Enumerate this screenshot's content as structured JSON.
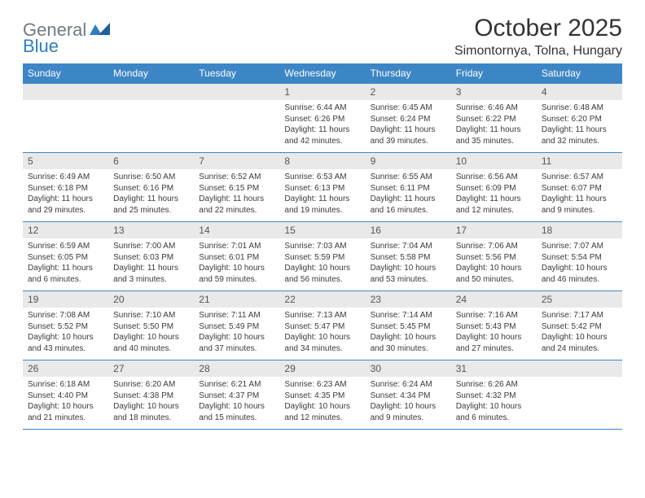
{
  "brand": {
    "name1": "General",
    "name2": "Blue"
  },
  "title": "October 2025",
  "location": "Simontornya, Tolna, Hungary",
  "colors": {
    "header_bg": "#3d86c6",
    "header_text": "#ffffff",
    "grid_border": "#3d86c6",
    "daynum_bg": "#e9e9e9",
    "body_text": "#3a3a3a",
    "logo_gray": "#6f7b83",
    "logo_blue": "#2f7fbf"
  },
  "days_of_week": [
    "Sunday",
    "Monday",
    "Tuesday",
    "Wednesday",
    "Thursday",
    "Friday",
    "Saturday"
  ],
  "weeks": [
    [
      {
        "empty": true
      },
      {
        "empty": true
      },
      {
        "empty": true
      },
      {
        "num": "1",
        "sunrise": "6:44 AM",
        "sunset": "6:26 PM",
        "daylight": "11 hours and 42 minutes."
      },
      {
        "num": "2",
        "sunrise": "6:45 AM",
        "sunset": "6:24 PM",
        "daylight": "11 hours and 39 minutes."
      },
      {
        "num": "3",
        "sunrise": "6:46 AM",
        "sunset": "6:22 PM",
        "daylight": "11 hours and 35 minutes."
      },
      {
        "num": "4",
        "sunrise": "6:48 AM",
        "sunset": "6:20 PM",
        "daylight": "11 hours and 32 minutes."
      }
    ],
    [
      {
        "num": "5",
        "sunrise": "6:49 AM",
        "sunset": "6:18 PM",
        "daylight": "11 hours and 29 minutes."
      },
      {
        "num": "6",
        "sunrise": "6:50 AM",
        "sunset": "6:16 PM",
        "daylight": "11 hours and 25 minutes."
      },
      {
        "num": "7",
        "sunrise": "6:52 AM",
        "sunset": "6:15 PM",
        "daylight": "11 hours and 22 minutes."
      },
      {
        "num": "8",
        "sunrise": "6:53 AM",
        "sunset": "6:13 PM",
        "daylight": "11 hours and 19 minutes."
      },
      {
        "num": "9",
        "sunrise": "6:55 AM",
        "sunset": "6:11 PM",
        "daylight": "11 hours and 16 minutes."
      },
      {
        "num": "10",
        "sunrise": "6:56 AM",
        "sunset": "6:09 PM",
        "daylight": "11 hours and 12 minutes."
      },
      {
        "num": "11",
        "sunrise": "6:57 AM",
        "sunset": "6:07 PM",
        "daylight": "11 hours and 9 minutes."
      }
    ],
    [
      {
        "num": "12",
        "sunrise": "6:59 AM",
        "sunset": "6:05 PM",
        "daylight": "11 hours and 6 minutes."
      },
      {
        "num": "13",
        "sunrise": "7:00 AM",
        "sunset": "6:03 PM",
        "daylight": "11 hours and 3 minutes."
      },
      {
        "num": "14",
        "sunrise": "7:01 AM",
        "sunset": "6:01 PM",
        "daylight": "10 hours and 59 minutes."
      },
      {
        "num": "15",
        "sunrise": "7:03 AM",
        "sunset": "5:59 PM",
        "daylight": "10 hours and 56 minutes."
      },
      {
        "num": "16",
        "sunrise": "7:04 AM",
        "sunset": "5:58 PM",
        "daylight": "10 hours and 53 minutes."
      },
      {
        "num": "17",
        "sunrise": "7:06 AM",
        "sunset": "5:56 PM",
        "daylight": "10 hours and 50 minutes."
      },
      {
        "num": "18",
        "sunrise": "7:07 AM",
        "sunset": "5:54 PM",
        "daylight": "10 hours and 46 minutes."
      }
    ],
    [
      {
        "num": "19",
        "sunrise": "7:08 AM",
        "sunset": "5:52 PM",
        "daylight": "10 hours and 43 minutes."
      },
      {
        "num": "20",
        "sunrise": "7:10 AM",
        "sunset": "5:50 PM",
        "daylight": "10 hours and 40 minutes."
      },
      {
        "num": "21",
        "sunrise": "7:11 AM",
        "sunset": "5:49 PM",
        "daylight": "10 hours and 37 minutes."
      },
      {
        "num": "22",
        "sunrise": "7:13 AM",
        "sunset": "5:47 PM",
        "daylight": "10 hours and 34 minutes."
      },
      {
        "num": "23",
        "sunrise": "7:14 AM",
        "sunset": "5:45 PM",
        "daylight": "10 hours and 30 minutes."
      },
      {
        "num": "24",
        "sunrise": "7:16 AM",
        "sunset": "5:43 PM",
        "daylight": "10 hours and 27 minutes."
      },
      {
        "num": "25",
        "sunrise": "7:17 AM",
        "sunset": "5:42 PM",
        "daylight": "10 hours and 24 minutes."
      }
    ],
    [
      {
        "num": "26",
        "sunrise": "6:18 AM",
        "sunset": "4:40 PM",
        "daylight": "10 hours and 21 minutes."
      },
      {
        "num": "27",
        "sunrise": "6:20 AM",
        "sunset": "4:38 PM",
        "daylight": "10 hours and 18 minutes."
      },
      {
        "num": "28",
        "sunrise": "6:21 AM",
        "sunset": "4:37 PM",
        "daylight": "10 hours and 15 minutes."
      },
      {
        "num": "29",
        "sunrise": "6:23 AM",
        "sunset": "4:35 PM",
        "daylight": "10 hours and 12 minutes."
      },
      {
        "num": "30",
        "sunrise": "6:24 AM",
        "sunset": "4:34 PM",
        "daylight": "10 hours and 9 minutes."
      },
      {
        "num": "31",
        "sunrise": "6:26 AM",
        "sunset": "4:32 PM",
        "daylight": "10 hours and 6 minutes."
      },
      {
        "empty": true
      }
    ]
  ],
  "labels": {
    "sunrise": "Sunrise:",
    "sunset": "Sunset:",
    "daylight": "Daylight:"
  }
}
